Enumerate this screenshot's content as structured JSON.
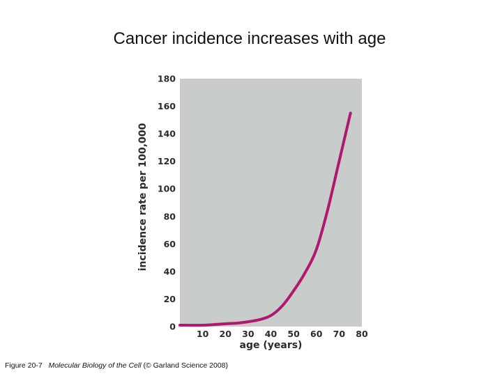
{
  "slide": {
    "title": "Cancer incidence increases with age"
  },
  "caption": {
    "figure": "Figure 20-7",
    "book": "Molecular Biology of the Cell",
    "credit": "(© Garland Science 2008)"
  },
  "colors": {
    "plot_background": "#c8ccca",
    "curve": "#b0186e",
    "text": "#2b2b2b"
  },
  "chart_data": {
    "type": "line",
    "title": "",
    "xlabel": "age (years)",
    "ylabel": "incidence rate per 100,000",
    "xlim": [
      0,
      80
    ],
    "ylim": [
      0,
      180
    ],
    "x_ticks": [
      10,
      20,
      30,
      40,
      50,
      60,
      70,
      80
    ],
    "y_ticks": [
      0,
      20,
      40,
      60,
      80,
      100,
      120,
      140,
      160,
      180
    ],
    "grid": false,
    "legend": "none",
    "series": [
      {
        "x": [
          0,
          10,
          20,
          25,
          30,
          35,
          40,
          45,
          50,
          55,
          60,
          65,
          70,
          75
        ],
        "y": [
          1,
          1,
          2,
          2.5,
          3.5,
          5,
          8,
          15,
          26,
          39,
          56,
          85,
          120,
          155
        ]
      }
    ]
  }
}
